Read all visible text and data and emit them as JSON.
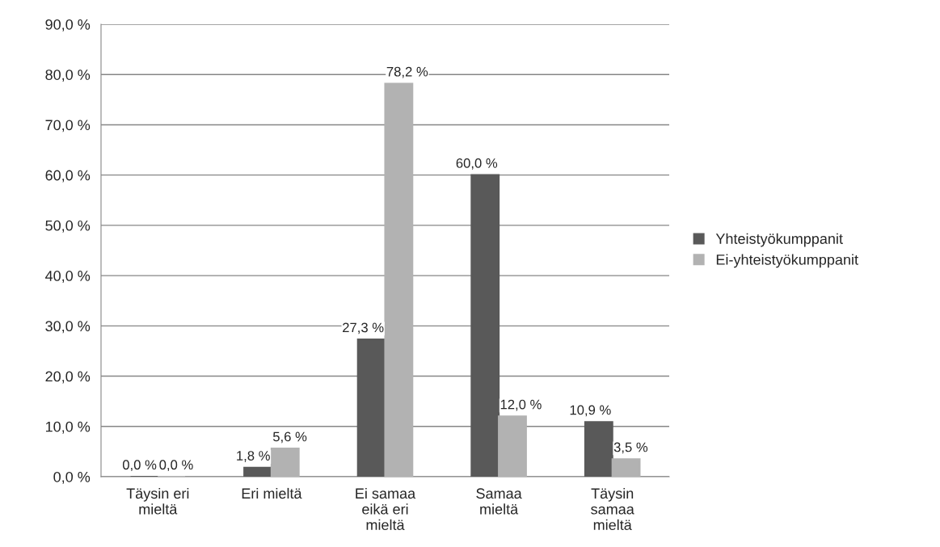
{
  "chart_data": {
    "type": "bar",
    "categories": [
      "Täysin eri\nmieltä",
      "Eri mieltä",
      "Ei samaa\neikä eri\nmieltä",
      "Samaa\nmieltä",
      "Täysin\nsamaa\nmieltä"
    ],
    "series": [
      {
        "name": "Yhteistyökumppanit",
        "color": "#595959",
        "values": [
          0.0,
          1.8,
          27.3,
          60.0,
          10.9
        ],
        "value_labels": [
          "0,0 %",
          "1,8 %",
          "27,3 %",
          "60,0 %",
          "10,9 %"
        ]
      },
      {
        "name": "Ei-yhteistyökumppanit",
        "color": "#b2b2b2",
        "values": [
          0.0,
          5.6,
          78.2,
          12.0,
          3.5
        ],
        "value_labels": [
          "0,0 %",
          "5,6 %",
          "78,2 %",
          "12,0 %",
          "3,5 %"
        ]
      }
    ],
    "ylim": [
      0,
      90
    ],
    "yticks": [
      {
        "value": 0,
        "label": "0,0 %"
      },
      {
        "value": 10,
        "label": "10,0 %"
      },
      {
        "value": 20,
        "label": "20,0 %"
      },
      {
        "value": 30,
        "label": "30,0 %"
      },
      {
        "value": 40,
        "label": "40,0 %"
      },
      {
        "value": 50,
        "label": "50,0 %"
      },
      {
        "value": 60,
        "label": "60,0 %"
      },
      {
        "value": 70,
        "label": "70,0 %"
      },
      {
        "value": 80,
        "label": "80,0 %"
      },
      {
        "value": 90,
        "label": "90,0 %"
      }
    ],
    "grid": "y",
    "legend": "right"
  }
}
